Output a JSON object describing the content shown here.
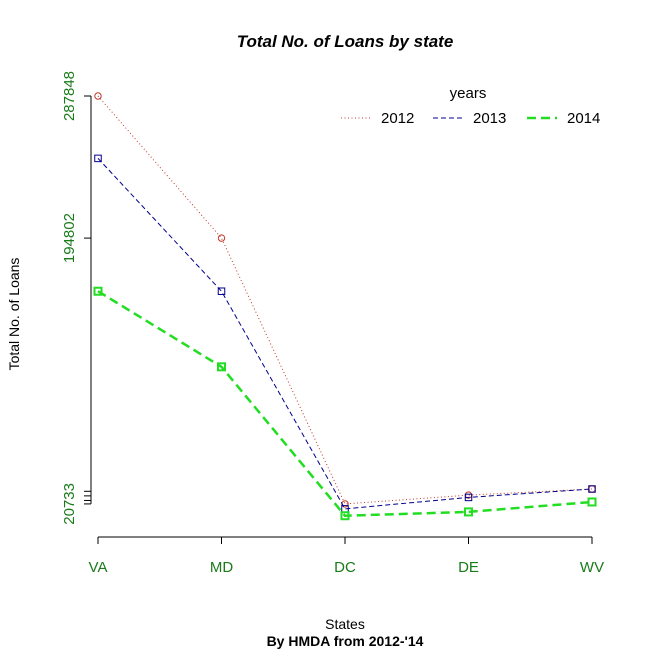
{
  "chart_data": {
    "type": "line",
    "title": "Total No. of Loans by state",
    "xlabel": "States",
    "ylabel": "Total No. of Loans",
    "caption": "By HMDA from 2012-'14",
    "categories": [
      "VA",
      "MD",
      "DC",
      "DE",
      "WV"
    ],
    "y_ticks": [
      {
        "value": 20733,
        "label": "20733"
      },
      {
        "value": 194802,
        "label": "194802"
      },
      {
        "value": 287848,
        "label": "287848"
      }
    ],
    "extra_ticks": [
      23000,
      26000,
      29000
    ],
    "ylim": [
      3000,
      287848
    ],
    "legend": {
      "title": "years",
      "position": "top-right"
    },
    "axis_label_color": "#1a7a1a",
    "series": [
      {
        "name": "2012",
        "values": [
          287848,
          194802,
          20733,
          26500,
          30500
        ],
        "color": "#c0392b",
        "dash": "1,2.5",
        "width": 1,
        "marker": "circle"
      },
      {
        "name": "2013",
        "values": [
          247000,
          160000,
          17500,
          25000,
          30500
        ],
        "color": "#00008b",
        "dash": "5,3",
        "width": 1,
        "marker": "square"
      },
      {
        "name": "2014",
        "values": [
          160000,
          110500,
          13000,
          15500,
          22000
        ],
        "color": "#22dd22",
        "dash": "9,5",
        "width": 2.5,
        "marker": "square"
      }
    ]
  }
}
